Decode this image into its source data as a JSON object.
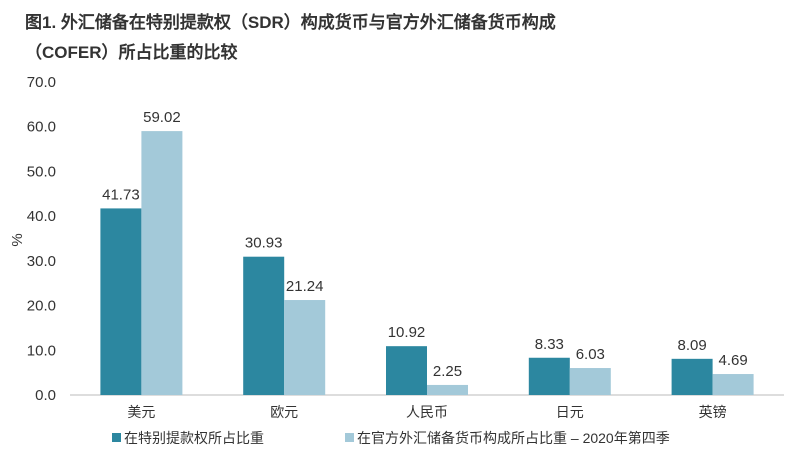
{
  "chart_data": {
    "type": "bar",
    "title_line1": "图1. 外汇储备在特别提款权（SDR）构成货币与官方外汇储备货币构成",
    "title_line2": "（COFER）所占比重的比较",
    "ylabel": "%",
    "xlabel": "",
    "ylim": [
      0,
      70
    ],
    "yticks": [
      "0.0",
      "10.0",
      "20.0",
      "30.0",
      "40.0",
      "50.0",
      "60.0",
      "70.0"
    ],
    "grid": false,
    "legend_position": "bottom",
    "categories": [
      "美元",
      "欧元",
      "人民币",
      "日元",
      "英镑"
    ],
    "series": [
      {
        "name": "在特别提款权所占比重",
        "values": [
          41.73,
          30.93,
          10.92,
          8.33,
          8.09
        ],
        "labels": [
          "41.73",
          "30.93",
          "10.92",
          "8.33",
          "8.09"
        ],
        "color": "#2c87a0"
      },
      {
        "name": "在官方外汇储备货币构成所占比重 – 2020年第四季",
        "values": [
          59.02,
          21.24,
          2.25,
          6.03,
          4.69
        ],
        "labels": [
          "59.02",
          "21.24",
          "2.25",
          "6.03",
          "4.69"
        ],
        "color": "#a3c9d9"
      }
    ]
  }
}
